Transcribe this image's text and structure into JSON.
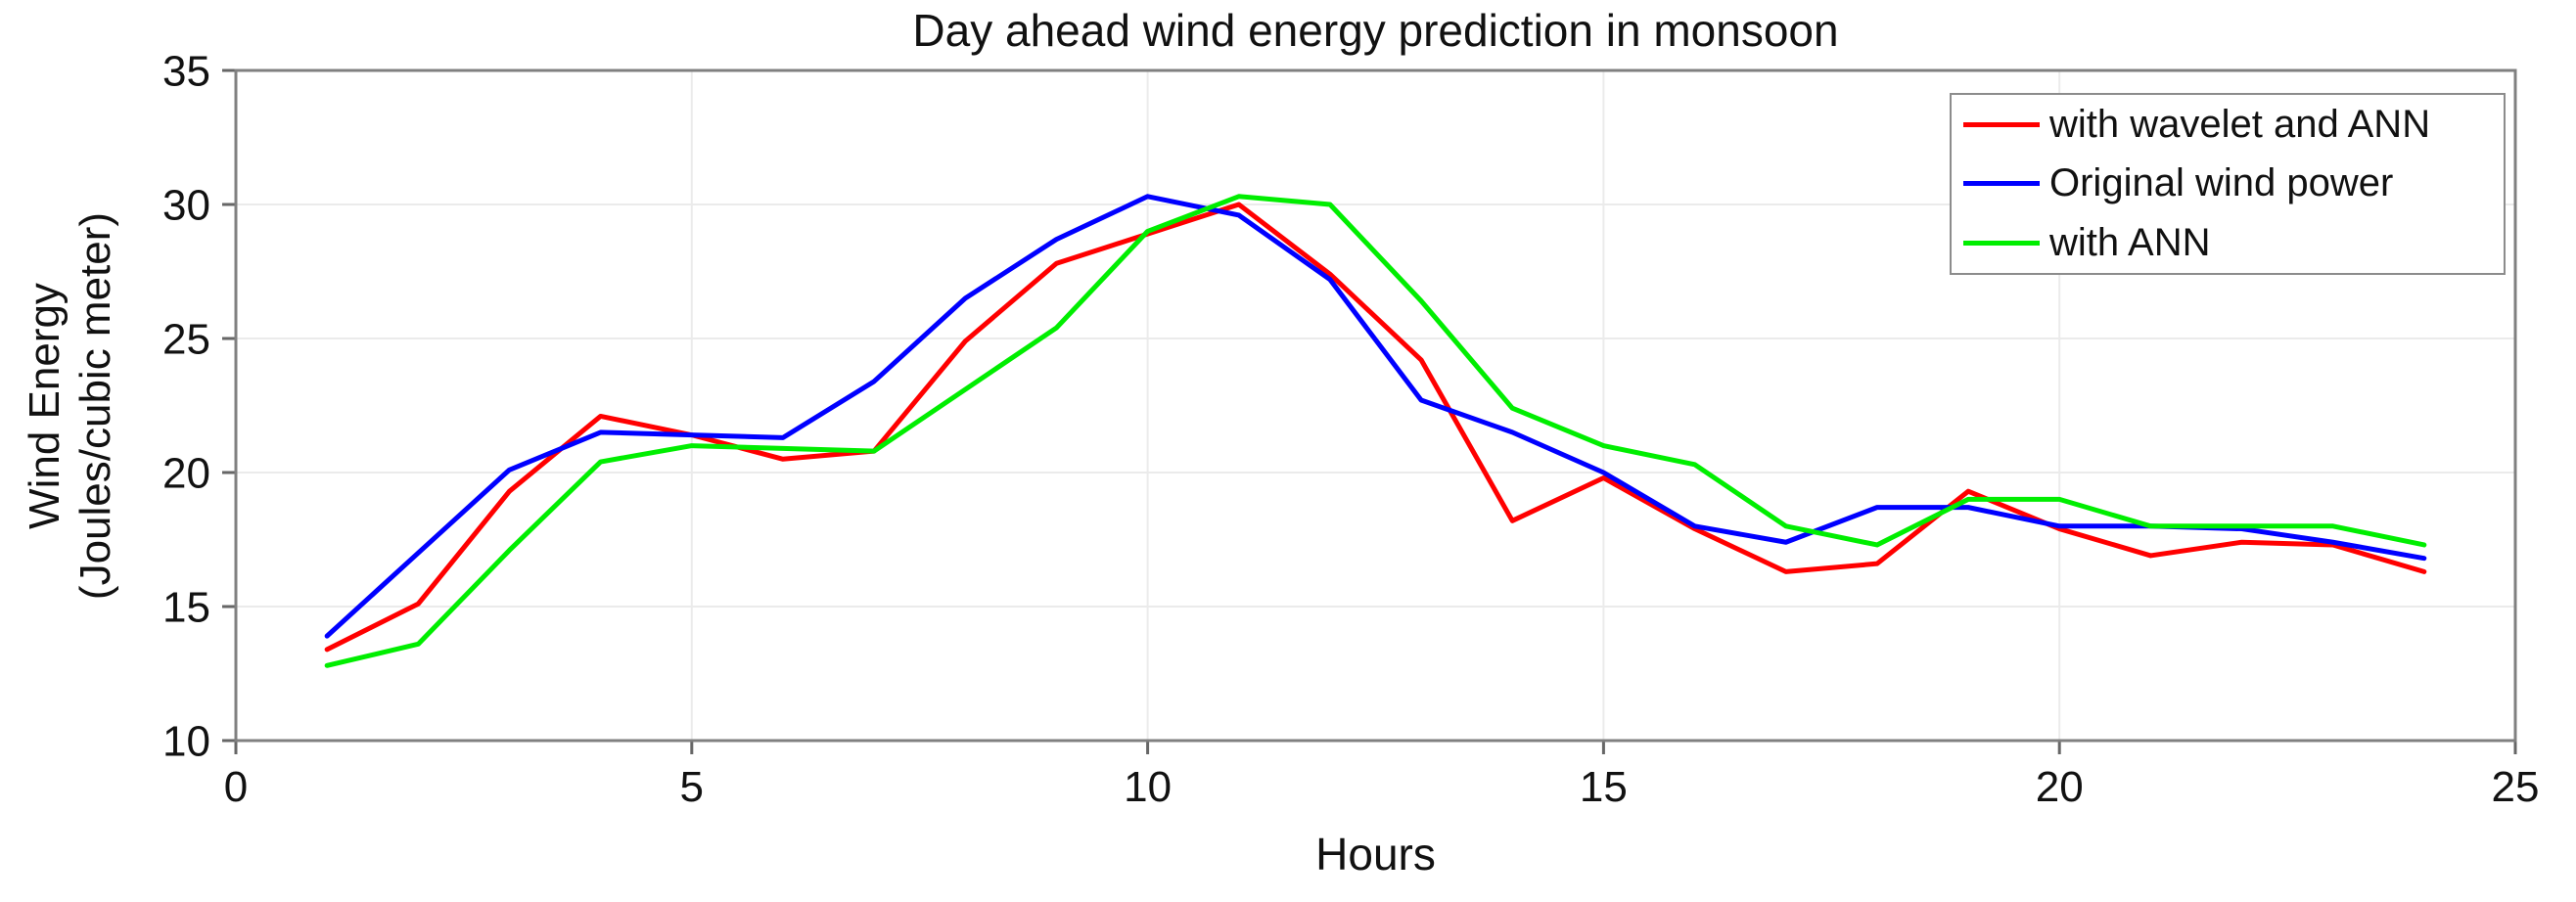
{
  "chart_data": {
    "type": "line",
    "title": "Day ahead wind energy prediction in monsoon",
    "xlabel": "Hours",
    "ylabel_lines": [
      "Wind Energy",
      "(Joules/cubic meter)"
    ],
    "xlim": [
      0,
      25
    ],
    "ylim": [
      10,
      35
    ],
    "xticks": [
      0,
      5,
      10,
      15,
      20,
      25
    ],
    "yticks": [
      10,
      15,
      20,
      25,
      30,
      35
    ],
    "grid": true,
    "legend_position": "top-right",
    "x_hours": [
      1,
      2,
      3,
      4,
      5,
      6,
      7,
      8,
      9,
      10,
      11,
      12,
      13,
      14,
      15,
      16,
      17,
      18,
      19,
      20,
      21,
      22,
      23,
      24
    ],
    "series": [
      {
        "name": "with wavelet and ANN",
        "color": "#ff0000",
        "values": [
          13.4,
          15.1,
          19.3,
          22.1,
          21.4,
          20.5,
          20.8,
          24.9,
          27.8,
          28.9,
          30.0,
          27.4,
          24.2,
          18.2,
          19.8,
          17.9,
          16.3,
          16.6,
          19.3,
          17.9,
          16.9,
          17.4,
          17.3,
          16.3
        ]
      },
      {
        "name": "Original wind power",
        "color": "#0000ff",
        "values": [
          13.9,
          17.0,
          20.1,
          21.5,
          21.4,
          21.3,
          23.4,
          26.5,
          28.7,
          30.3,
          29.6,
          27.2,
          22.7,
          21.5,
          20.0,
          18.0,
          17.4,
          18.7,
          18.7,
          18.0,
          18.0,
          17.9,
          17.4,
          16.8
        ]
      },
      {
        "name": "with ANN",
        "color": "#00ee00",
        "values": [
          12.8,
          13.6,
          17.1,
          20.4,
          21.0,
          20.9,
          20.8,
          23.1,
          25.4,
          29.0,
          30.3,
          30.0,
          26.4,
          22.4,
          21.0,
          20.3,
          18.0,
          17.3,
          19.0,
          19.0,
          18.0,
          18.0,
          18.0,
          17.3
        ]
      }
    ],
    "colors": {
      "grid": "#ebebeb",
      "frame": "#808080",
      "tick": "#666666",
      "text": "#111111"
    }
  }
}
